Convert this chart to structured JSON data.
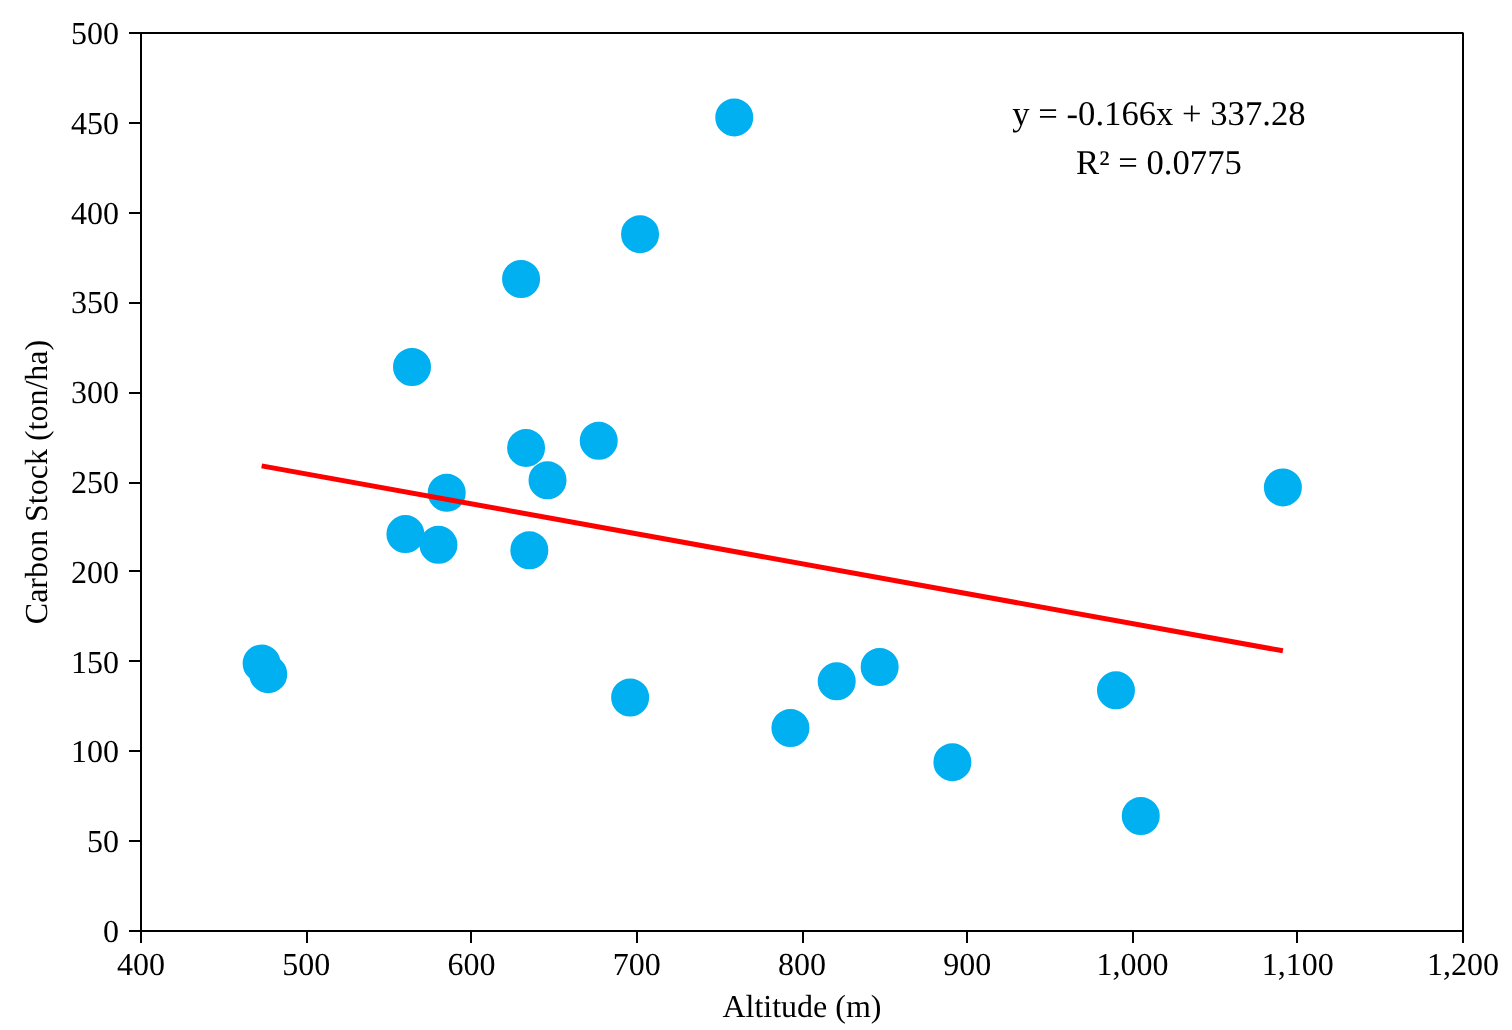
{
  "chart_data": {
    "type": "scatter",
    "xlabel": "Altitude (m)",
    "ylabel": "Carbon Stock (ton/ha)",
    "xlim": [
      400,
      1200
    ],
    "ylim": [
      0,
      500
    ],
    "xticks": [
      400,
      500,
      600,
      700,
      800,
      900,
      {
        "value": 1000,
        "label": "1,000"
      },
      {
        "value": 1100,
        "label": "1,100"
      },
      {
        "value": 1200,
        "label": "1,200"
      }
    ],
    "yticks": [
      0,
      50,
      100,
      150,
      200,
      250,
      300,
      350,
      400,
      450,
      500
    ],
    "grid": false,
    "annotations": [
      "y = -0.166x + 337.28",
      "R² = 0.0775"
    ],
    "series": [
      {
        "marker": "circle",
        "color": "#00b0f0",
        "x": [
          473,
          477,
          564,
          630,
          633,
          677,
          646,
          585,
          560,
          580,
          635,
          702,
          759,
          696,
          793,
          821,
          847,
          891,
          990,
          1005,
          1091
        ],
        "values": [
          149,
          143,
          314,
          363,
          269,
          273,
          251,
          244,
          221,
          215,
          212,
          388,
          453,
          130,
          113,
          139,
          147,
          94,
          134,
          64,
          247
        ]
      },
      {
        "type": "line",
        "marker": "none",
        "color": "#ff0000",
        "x": [
          473,
          1091
        ],
        "values": [
          259,
          156
        ]
      }
    ]
  }
}
